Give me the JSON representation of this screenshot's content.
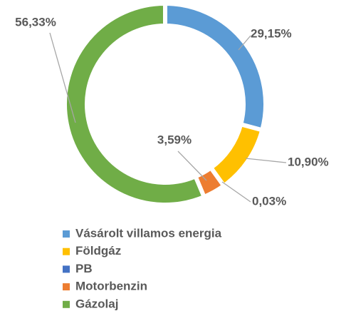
{
  "chart_data": {
    "type": "donut",
    "categories": [
      "Vásárolt villamos energia",
      "Földgáz",
      "PB",
      "Motorbenzin",
      "Gázolaj"
    ],
    "values": [
      29.15,
      10.9,
      0.03,
      3.59,
      56.33
    ],
    "value_labels": [
      "29,15%",
      "10,90%",
      "0,03%",
      "3,59%",
      "56,33%"
    ],
    "colors": [
      "#5b9bd5",
      "#ffc000",
      "#4472c4",
      "#ed7d31",
      "#70ad47"
    ],
    "legend": "bottom"
  }
}
